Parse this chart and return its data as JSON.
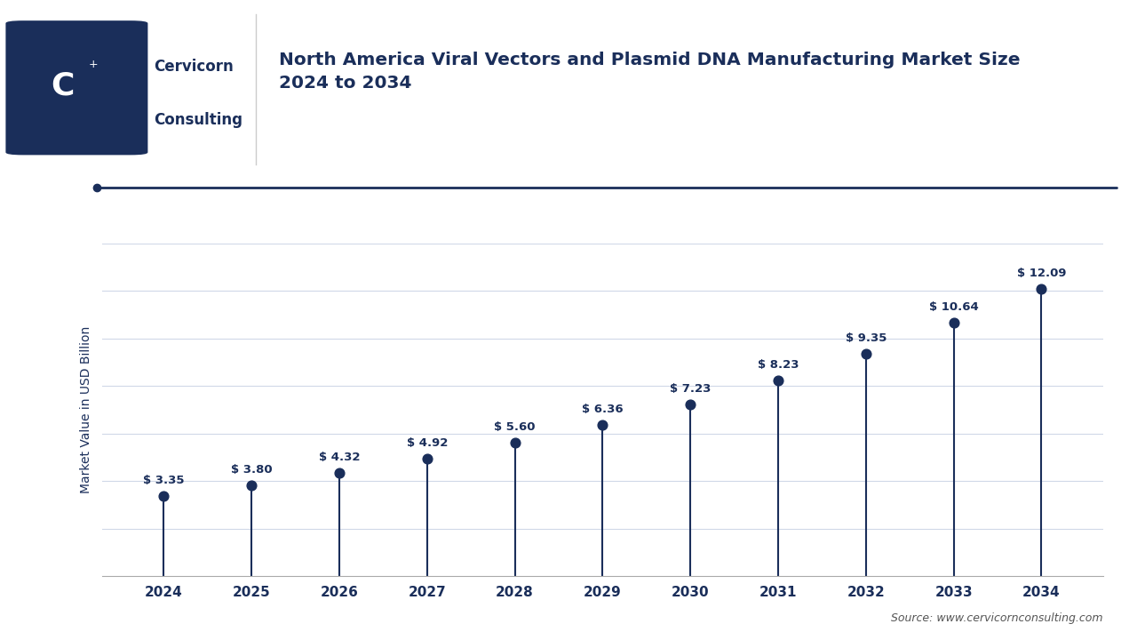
{
  "title_line1": "North America Viral Vectors and Plasmid DNA Manufacturing Market Size",
  "title_line2": "2024 to 2034",
  "ylabel": "Market Value in USD Billion",
  "source_text": "Source: www.cervicornconsulting.com",
  "years": [
    2024,
    2025,
    2026,
    2027,
    2028,
    2029,
    2030,
    2031,
    2032,
    2033,
    2034
  ],
  "values": [
    3.35,
    3.8,
    4.32,
    4.92,
    5.6,
    6.36,
    7.23,
    8.23,
    9.35,
    10.64,
    12.09
  ],
  "labels": [
    "$ 3.35",
    "$ 3.80",
    "$ 4.32",
    "$ 4.92",
    "$ 5.60",
    "$ 6.36",
    "$ 7.23",
    "$ 8.23",
    "$ 9.35",
    "$ 10.64",
    "$ 12.09"
  ],
  "line_color": "#1a2e5a",
  "dot_color": "#1a2e5a",
  "title_color": "#1a2e5a",
  "axis_color": "#1a2e5a",
  "label_color": "#1a2e5a",
  "grid_color": "#d0d8e8",
  "background_color": "#ffffff",
  "ylim_min": 0,
  "ylim_max": 14,
  "logo_box_color": "#1a2e5a",
  "company_name_line1": "Cervicorn",
  "company_name_line2": "Consulting"
}
